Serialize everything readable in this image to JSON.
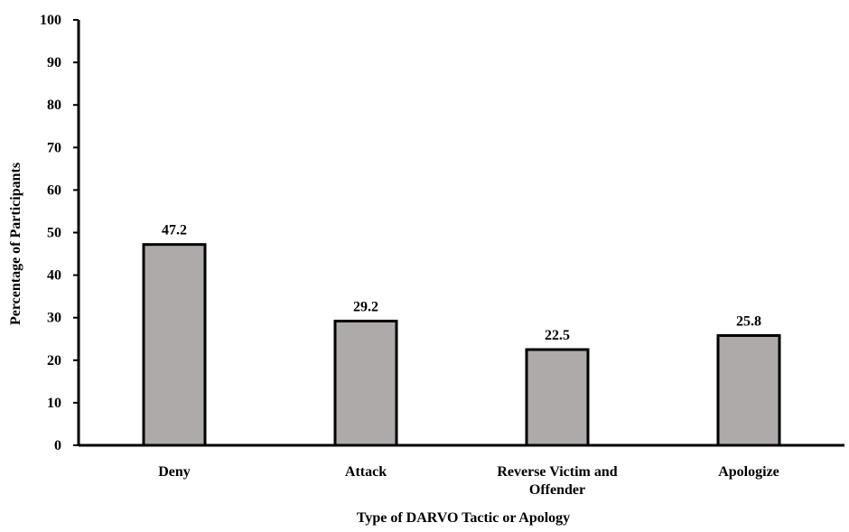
{
  "chart_data": {
    "type": "bar",
    "categories": [
      "Deny",
      "Attack",
      "Reverse Victim and Offender",
      "Apologize"
    ],
    "category_lines": [
      [
        "Deny"
      ],
      [
        "Attack"
      ],
      [
        "Reverse Victim and",
        "Offender"
      ],
      [
        "Apologize"
      ]
    ],
    "values": [
      47.2,
      29.2,
      22.5,
      25.8
    ],
    "data_labels": [
      "47.2",
      "29.2",
      "22.5",
      "25.8"
    ],
    "title": "",
    "xlabel": "Type of DARVO Tactic or Apology",
    "ylabel": "Percentage of Participants",
    "ylim": [
      0,
      100
    ],
    "yticks": [
      0,
      10,
      20,
      30,
      40,
      50,
      60,
      70,
      80,
      90,
      100
    ],
    "grid": false,
    "legend": "none",
    "colors": {
      "bar_fill": "#aeaaaa",
      "bar_stroke": "#000000",
      "axis": "#000000"
    }
  }
}
